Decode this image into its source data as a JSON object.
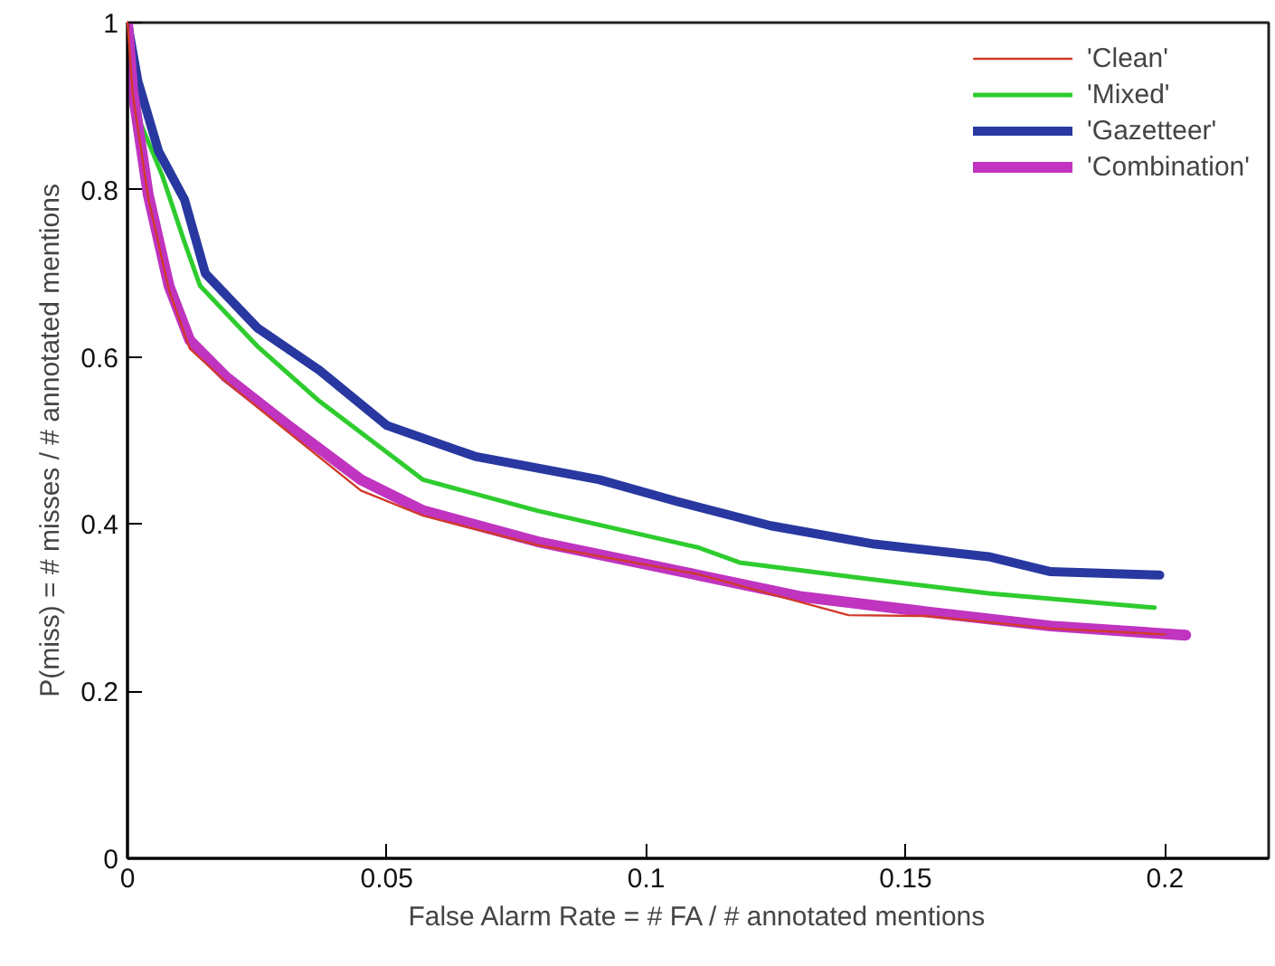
{
  "chart_data": {
    "type": "line",
    "xlabel": "False Alarm Rate = # FA / # annotated mentions",
    "ylabel": "P(miss) = # misses / # annotated mentions",
    "xlim": [
      0,
      0.22
    ],
    "ylim": [
      0,
      1
    ],
    "xticks": [
      0,
      0.05,
      0.1,
      0.15,
      0.2
    ],
    "yticks": [
      0,
      0.2,
      0.4,
      0.6,
      0.8,
      1
    ],
    "grid": false,
    "legend": "top right",
    "marker": "none",
    "line_style": "solid",
    "series": [
      {
        "name": "'Clean'",
        "color": "#d03a2a",
        "x": [
          0,
          0.001,
          0.004,
          0.008,
          0.012,
          0.019,
          0.031,
          0.045,
          0.057,
          0.079,
          0.11,
          0.139,
          0.154,
          0.178,
          0.2
        ],
        "values": [
          1,
          0.915,
          0.79,
          0.68,
          0.61,
          0.57,
          0.51,
          0.44,
          0.41,
          0.375,
          0.34,
          0.291,
          0.29,
          0.275,
          0.268
        ]
      },
      {
        "name": "'Mixed'",
        "color": "#2ecc2e",
        "x": [
          0,
          0.0025,
          0.0067,
          0.011,
          0.014,
          0.025,
          0.037,
          0.057,
          0.079,
          0.11,
          0.118,
          0.142,
          0.166,
          0.198
        ],
        "values": [
          1,
          0.88,
          0.817,
          0.737,
          0.685,
          0.613,
          0.547,
          0.453,
          0.416,
          0.372,
          0.354,
          0.335,
          0.317,
          0.3
        ]
      },
      {
        "name": "'Gazetteer'",
        "color": "#2838a0",
        "x": [
          0,
          0.002,
          0.006,
          0.011,
          0.015,
          0.025,
          0.037,
          0.05,
          0.067,
          0.091,
          0.106,
          0.124,
          0.144,
          0.166,
          0.178,
          0.199
        ],
        "values": [
          1,
          0.93,
          0.846,
          0.788,
          0.7,
          0.635,
          0.584,
          0.518,
          0.481,
          0.453,
          0.427,
          0.398,
          0.376,
          0.361,
          0.343,
          0.339
        ]
      },
      {
        "name": "'Combination'",
        "color": "#c034c0",
        "x": [
          0,
          0.001,
          0.004,
          0.008,
          0.012,
          0.019,
          0.031,
          0.045,
          0.057,
          0.079,
          0.11,
          0.13,
          0.154,
          0.178,
          0.204
        ],
        "values": [
          1,
          0.919,
          0.794,
          0.685,
          0.62,
          0.576,
          0.518,
          0.453,
          0.416,
          0.379,
          0.339,
          0.313,
          0.295,
          0.278,
          0.267
        ]
      }
    ]
  }
}
